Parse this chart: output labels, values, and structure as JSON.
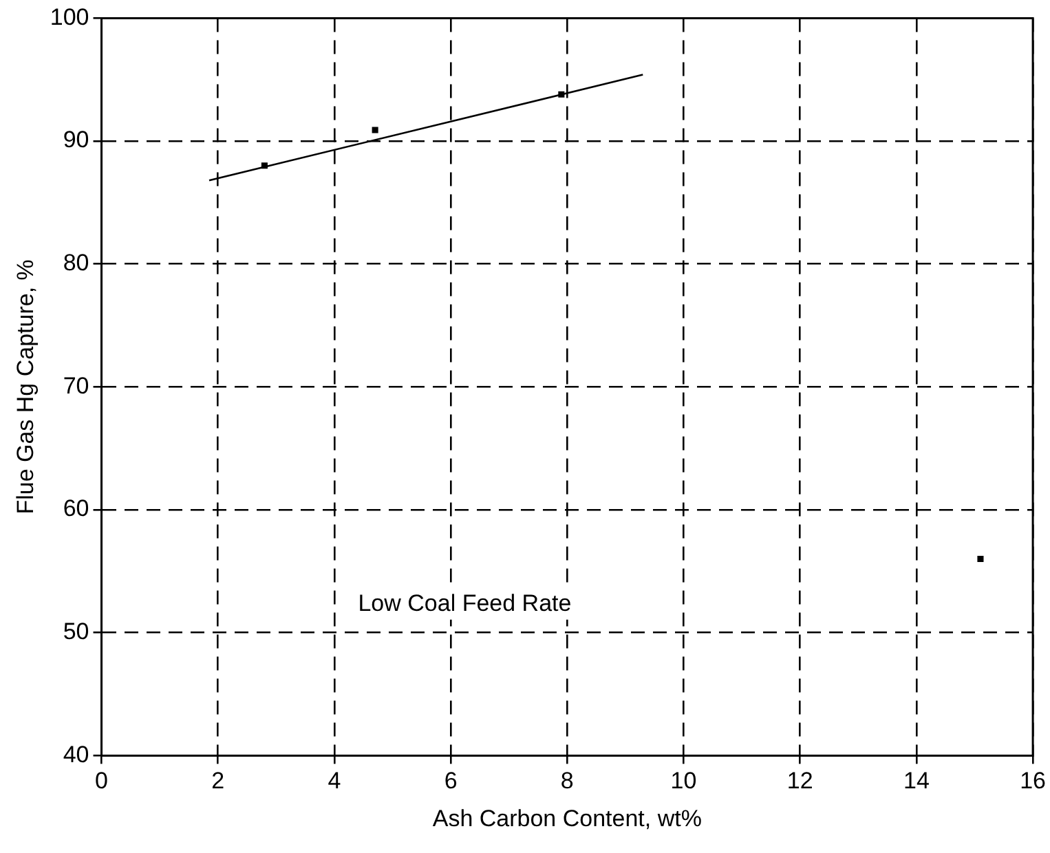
{
  "chart_data": {
    "type": "scatter",
    "xlabel": "Ash Carbon Content, wt%",
    "ylabel": "Flue Gas Hg Capture, %",
    "annotations": [
      "Low Coal Feed Rate"
    ],
    "xlim": [
      0,
      16
    ],
    "xticks": [
      0,
      2,
      4,
      6,
      8,
      10,
      12,
      14,
      16
    ],
    "ylim": [
      40,
      100
    ],
    "yticks": [
      40,
      50,
      60,
      70,
      80,
      90,
      100
    ],
    "grid": true,
    "legend": false,
    "line_style": "dashed",
    "series": [
      {
        "color": "#000000",
        "marker": "square",
        "x": [
          2.8,
          4.7,
          7.9,
          15.1
        ],
        "values": [
          88.0,
          90.9,
          93.8,
          56.0
        ]
      },
      {
        "type": "line",
        "color": "#000000",
        "marker": "none",
        "line_style": "solid",
        "x": [
          1.85,
          9.3
        ],
        "values": [
          86.8,
          95.4
        ]
      }
    ]
  }
}
